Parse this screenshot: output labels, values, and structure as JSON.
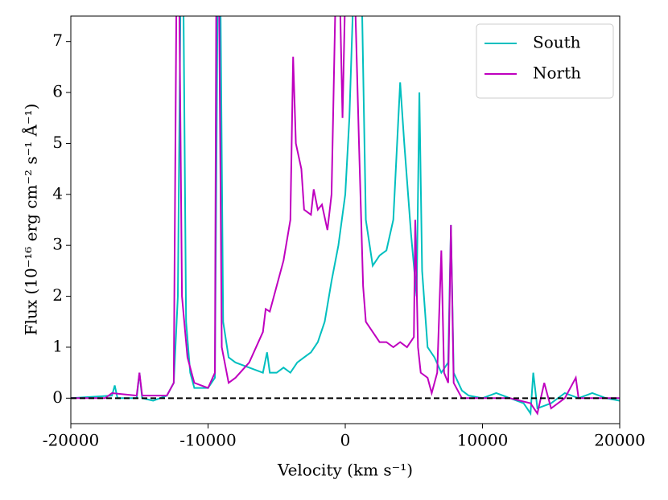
{
  "chart_data": {
    "type": "line",
    "xlabel": "Velocity (km s⁻¹)",
    "ylabel": "Flux (10⁻¹⁶ erg cm⁻² s⁻¹ Å⁻¹)",
    "xlim": [
      -20000,
      20000
    ],
    "xticks": [
      -20000,
      -10000,
      0,
      10000,
      20000
    ],
    "ylim": [
      -0.5,
      7.5
    ],
    "yticks": [
      0,
      1,
      2,
      3,
      4,
      5,
      6,
      7
    ],
    "hline": 0,
    "legend": "upper right",
    "series": [
      {
        "name": "South",
        "color": "#00bfbf",
        "x": [
          -20000,
          -17000,
          -16800,
          -16600,
          -15200,
          -15000,
          -14800,
          -14000,
          -13000,
          -12500,
          -12200,
          -12000,
          -11800,
          -11600,
          -11300,
          -11000,
          -10000,
          -9500,
          -9300,
          -9100,
          -8900,
          -8500,
          -8000,
          -7000,
          -6000,
          -5700,
          -5500,
          -5000,
          -4500,
          -4000,
          -3500,
          -3000,
          -2500,
          -2000,
          -1500,
          -1000,
          -500,
          0,
          300,
          600,
          1200,
          1500,
          2000,
          2500,
          3000,
          3500,
          4000,
          4300,
          4800,
          5200,
          5400,
          5600,
          6000,
          6500,
          7000,
          7500,
          7700,
          7900,
          8500,
          9000,
          10000,
          11000,
          12000,
          13000,
          13500,
          13700,
          14000,
          15000,
          16000,
          17000,
          18000,
          19000,
          20000
        ],
        "values": [
          0,
          0.05,
          0.25,
          0,
          0,
          0.5,
          0,
          -0.05,
          0.05,
          0.3,
          2,
          8,
          8,
          1.5,
          0.5,
          0.2,
          0.2,
          0.4,
          8,
          8,
          1.5,
          0.8,
          0.7,
          0.6,
          0.5,
          0.9,
          0.5,
          0.5,
          0.6,
          0.5,
          0.7,
          0.8,
          0.9,
          1.1,
          1.5,
          2.3,
          3,
          4,
          5.5,
          8,
          8,
          3.5,
          2.6,
          2.8,
          2.9,
          3.5,
          6.2,
          5,
          3.2,
          2,
          6,
          2.5,
          1,
          0.8,
          0.5,
          0.7,
          3.4,
          0.5,
          0.15,
          0.05,
          0,
          0.1,
          0,
          -0.1,
          -0.3,
          0.5,
          -0.2,
          -0.1,
          0.1,
          0,
          0.1,
          0,
          -0.05
        ]
      },
      {
        "name": "North",
        "color": "#bf00bf",
        "x": [
          -20000,
          -17500,
          -17000,
          -15200,
          -15000,
          -14800,
          -13000,
          -12500,
          -12300,
          -12100,
          -11900,
          -11500,
          -11000,
          -10000,
          -9500,
          -9400,
          -9200,
          -9000,
          -8500,
          -8000,
          -7000,
          -6500,
          -6000,
          -5800,
          -5500,
          -5000,
          -4500,
          -4000,
          -3800,
          -3600,
          -3200,
          -3000,
          -2500,
          -2300,
          -2000,
          -1700,
          -1300,
          -1000,
          -700,
          -400,
          -200,
          0,
          700,
          1000,
          1300,
          1500,
          2000,
          2500,
          3000,
          3500,
          4000,
          4500,
          5000,
          5100,
          5300,
          5500,
          6000,
          6300,
          6700,
          7000,
          7200,
          7500,
          7700,
          7900,
          8500,
          10000,
          12000,
          13500,
          14000,
          14500,
          15000,
          16000,
          16800,
          17000,
          18000,
          20000
        ],
        "values": [
          0,
          0,
          0.1,
          0.05,
          0.5,
          0.05,
          0.05,
          0.3,
          8,
          8,
          2,
          0.8,
          0.3,
          0.2,
          0.5,
          8,
          8,
          1,
          0.3,
          0.4,
          0.7,
          1,
          1.3,
          1.75,
          1.7,
          2.2,
          2.7,
          3.5,
          6.7,
          5,
          4.5,
          3.7,
          3.6,
          4.1,
          3.7,
          3.8,
          3.3,
          4,
          8,
          8,
          5.5,
          8,
          8,
          5,
          2.2,
          1.5,
          1.3,
          1.1,
          1.1,
          1,
          1.1,
          1,
          1.2,
          3.5,
          1,
          0.5,
          0.4,
          0.1,
          0.5,
          2.9,
          0.5,
          0.3,
          3.4,
          0.3,
          0,
          0,
          0,
          -0.1,
          -0.3,
          0.3,
          -0.2,
          0,
          0.4,
          0,
          0,
          0
        ]
      }
    ]
  }
}
